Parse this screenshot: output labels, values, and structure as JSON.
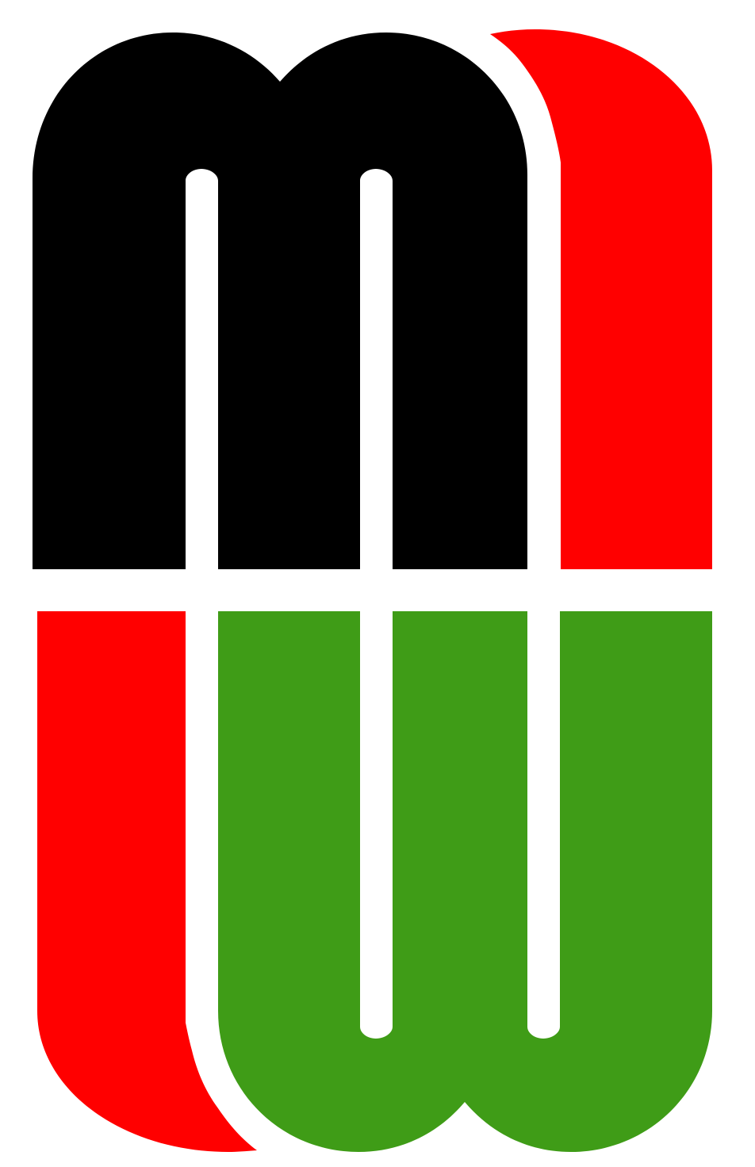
{
  "logo": {
    "icon": "mw-monogram-logo",
    "colors": {
      "background": "#ffffff",
      "m_letter": "#000000",
      "accent_red": "#ff0000",
      "w_letter": "#3f9c17"
    }
  }
}
